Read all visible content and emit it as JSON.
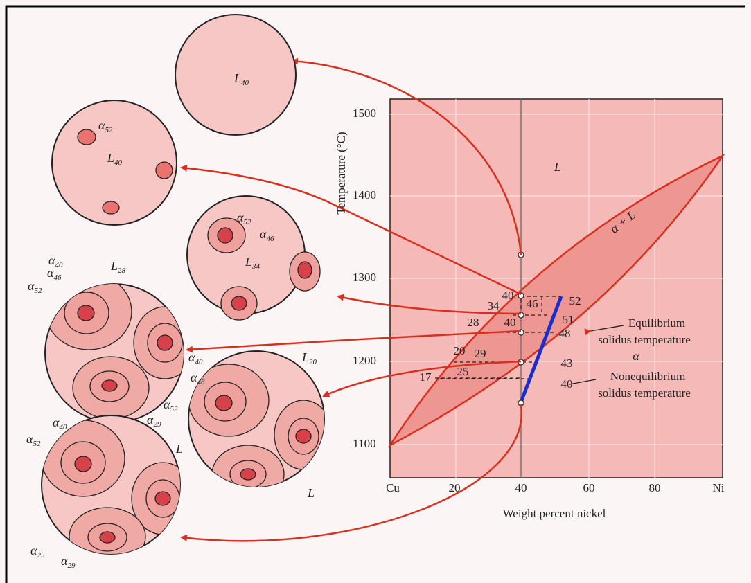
{
  "microstructures": [
    {
      "labels": [
        {
          "symbol": "L",
          "subscript": "40"
        }
      ]
    },
    {
      "labels": [
        {
          "symbol": "α",
          "subscript": "52"
        },
        {
          "symbol": "L",
          "subscript": "40"
        }
      ]
    },
    {
      "labels": [
        {
          "symbol": "α",
          "subscript": "52"
        },
        {
          "symbol": "α",
          "subscript": "46"
        },
        {
          "symbol": "L",
          "subscript": "34"
        }
      ]
    },
    {
      "labels": [
        {
          "symbol": "α",
          "subscript": "40"
        },
        {
          "symbol": "α",
          "subscript": "46"
        },
        {
          "symbol": "α",
          "subscript": "52"
        },
        {
          "symbol": "L",
          "subscript": "28"
        }
      ]
    },
    {
      "labels": [
        {
          "symbol": "α",
          "subscript": "40"
        },
        {
          "symbol": "α",
          "subscript": "46"
        },
        {
          "symbol": "α",
          "subscript": "52"
        },
        {
          "symbol": "α",
          "subscript": "29"
        },
        {
          "symbol": "L",
          "subscript": "20"
        },
        {
          "symbol": "L"
        },
        {
          "symbol": "L"
        }
      ]
    },
    {
      "labels": [
        {
          "symbol": "α",
          "subscript": "40"
        },
        {
          "symbol": "α",
          "subscript": "52"
        },
        {
          "symbol": "α",
          "subscript": "25"
        },
        {
          "symbol": "α",
          "subscript": "29"
        }
      ]
    }
  ],
  "phase_diagram": {
    "y_axis_label": "Temperature (°C)",
    "x_axis_label": "Weight percent nickel",
    "y_ticks": [
      "1500",
      "1400",
      "1300",
      "1200",
      "1100"
    ],
    "x_ticks": [
      "Cu",
      "20",
      "40",
      "60",
      "80",
      "Ni"
    ],
    "region_labels": [
      "L",
      "α + L",
      "α"
    ],
    "compositions": [
      "40",
      "46",
      "52",
      "34",
      "28",
      "40",
      "51",
      "48",
      "20",
      "29",
      "43",
      "17",
      "25",
      "40"
    ],
    "equilibrium_note": [
      "Equilibrium",
      "solidus temperature"
    ],
    "nonequilibrium_note": [
      "Nonequilibrium",
      "solidus temperature"
    ]
  }
}
